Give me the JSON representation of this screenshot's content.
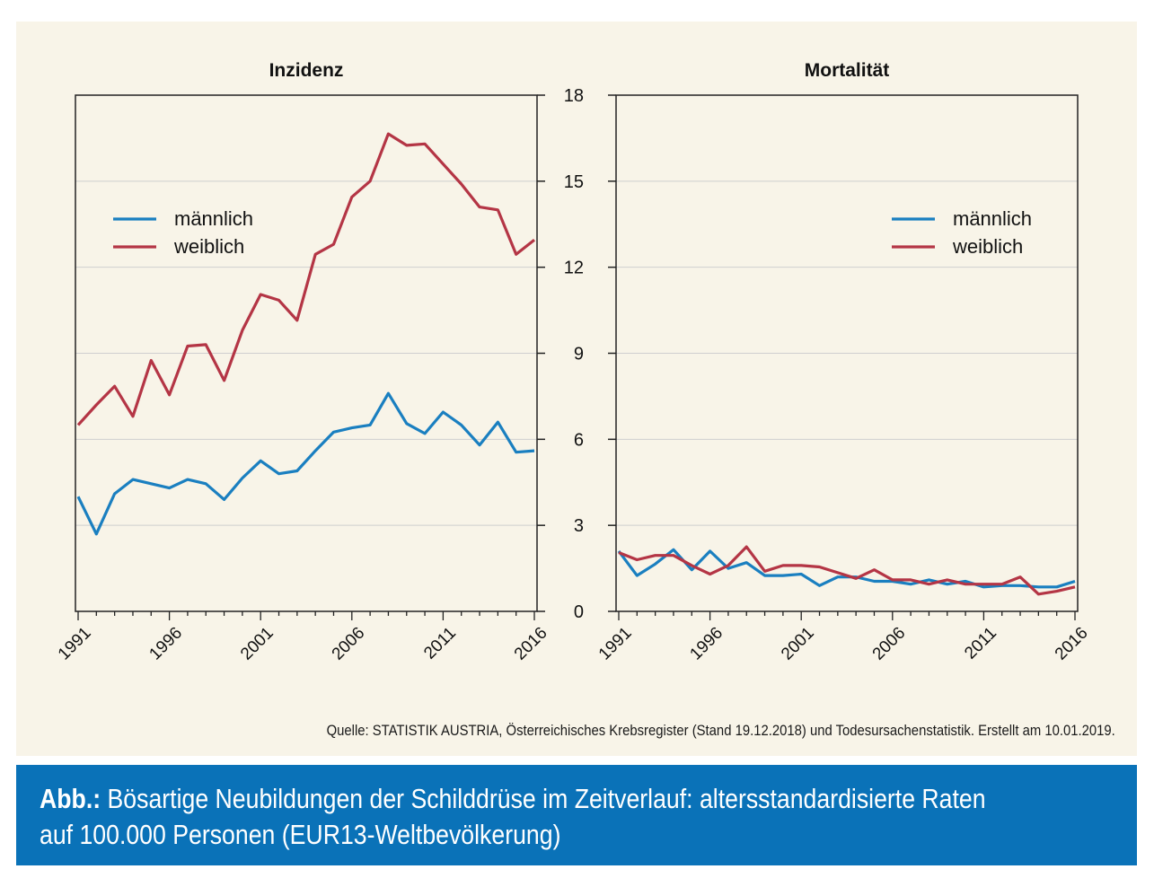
{
  "colors": {
    "male": "#1a7fc0",
    "female": "#b43545",
    "panel_bg": "#f8f4e8",
    "caption_bg": "#0a72b8",
    "grid": "#cfcfcf"
  },
  "source": "Quelle: STATISTIK AUSTRIA, Österreichisches Krebsregister (Stand 19.12.2018) und Todesursachenstatistik. Erstellt am 10.01.2019.",
  "caption": {
    "prefix": "Abb.:",
    "line1": " Bösartige Neubildungen der Schilddrüse im Zeitverlauf: altersstandardisierte Raten",
    "line2": "auf 100.000 Personen (EUR13-Weltbevölkerung)"
  },
  "chart_data": [
    {
      "type": "line",
      "title": "Inzidenz",
      "xlabel": "",
      "ylabel": "",
      "x": [
        1991,
        1992,
        1993,
        1994,
        1995,
        1996,
        1997,
        1998,
        1999,
        2000,
        2001,
        2002,
        2003,
        2004,
        2005,
        2006,
        2007,
        2008,
        2009,
        2010,
        2011,
        2012,
        2013,
        2014,
        2015,
        2016
      ],
      "xticks": [
        "1991",
        "1996",
        "2001",
        "2006",
        "2011",
        "2016"
      ],
      "yticks": [
        "0",
        "3",
        "6",
        "9",
        "12",
        "15",
        "18"
      ],
      "ylim": [
        0,
        18
      ],
      "grid": true,
      "legend_position": "top-left",
      "series": [
        {
          "name": "männlich",
          "color": "#1a7fc0",
          "values": [
            4.0,
            2.7,
            4.1,
            4.6,
            4.45,
            4.3,
            4.6,
            4.45,
            3.9,
            4.65,
            5.25,
            4.8,
            4.9,
            5.6,
            6.25,
            6.4,
            6.5,
            7.6,
            6.55,
            6.2,
            6.95,
            6.5,
            5.8,
            6.6,
            5.55,
            5.6
          ]
        },
        {
          "name": "weiblich",
          "color": "#b43545",
          "values": [
            6.5,
            7.2,
            7.85,
            6.8,
            8.75,
            7.55,
            9.25,
            9.3,
            8.05,
            9.8,
            11.05,
            10.85,
            10.15,
            12.45,
            12.8,
            14.45,
            15.0,
            16.65,
            16.25,
            16.3,
            15.6,
            14.9,
            14.1,
            14.0,
            12.45,
            12.95
          ]
        }
      ]
    },
    {
      "type": "line",
      "title": "Mortalität",
      "xlabel": "",
      "ylabel": "",
      "x": [
        1991,
        1992,
        1993,
        1994,
        1995,
        1996,
        1997,
        1998,
        1999,
        2000,
        2001,
        2002,
        2003,
        2004,
        2005,
        2006,
        2007,
        2008,
        2009,
        2010,
        2011,
        2012,
        2013,
        2014,
        2015,
        2016
      ],
      "xticks": [
        "1991",
        "1996",
        "2001",
        "2006",
        "2011",
        "2016"
      ],
      "yticks": [
        "0",
        "3",
        "6",
        "9",
        "12",
        "15",
        "18"
      ],
      "ylim": [
        0,
        18
      ],
      "grid": true,
      "legend_position": "top-right",
      "series": [
        {
          "name": "männlich",
          "color": "#1a7fc0",
          "values": [
            2.1,
            1.25,
            1.65,
            2.15,
            1.45,
            2.1,
            1.5,
            1.7,
            1.25,
            1.25,
            1.3,
            0.9,
            1.2,
            1.2,
            1.05,
            1.05,
            0.95,
            1.1,
            0.95,
            1.05,
            0.85,
            0.9,
            0.9,
            0.85,
            0.85,
            1.05
          ]
        },
        {
          "name": "weiblich",
          "color": "#b43545",
          "values": [
            2.05,
            1.8,
            1.95,
            1.95,
            1.6,
            1.3,
            1.6,
            2.25,
            1.4,
            1.6,
            1.6,
            1.55,
            1.35,
            1.15,
            1.45,
            1.1,
            1.1,
            0.95,
            1.1,
            0.95,
            0.95,
            0.95,
            1.2,
            0.6,
            0.7,
            0.85
          ]
        }
      ]
    }
  ]
}
